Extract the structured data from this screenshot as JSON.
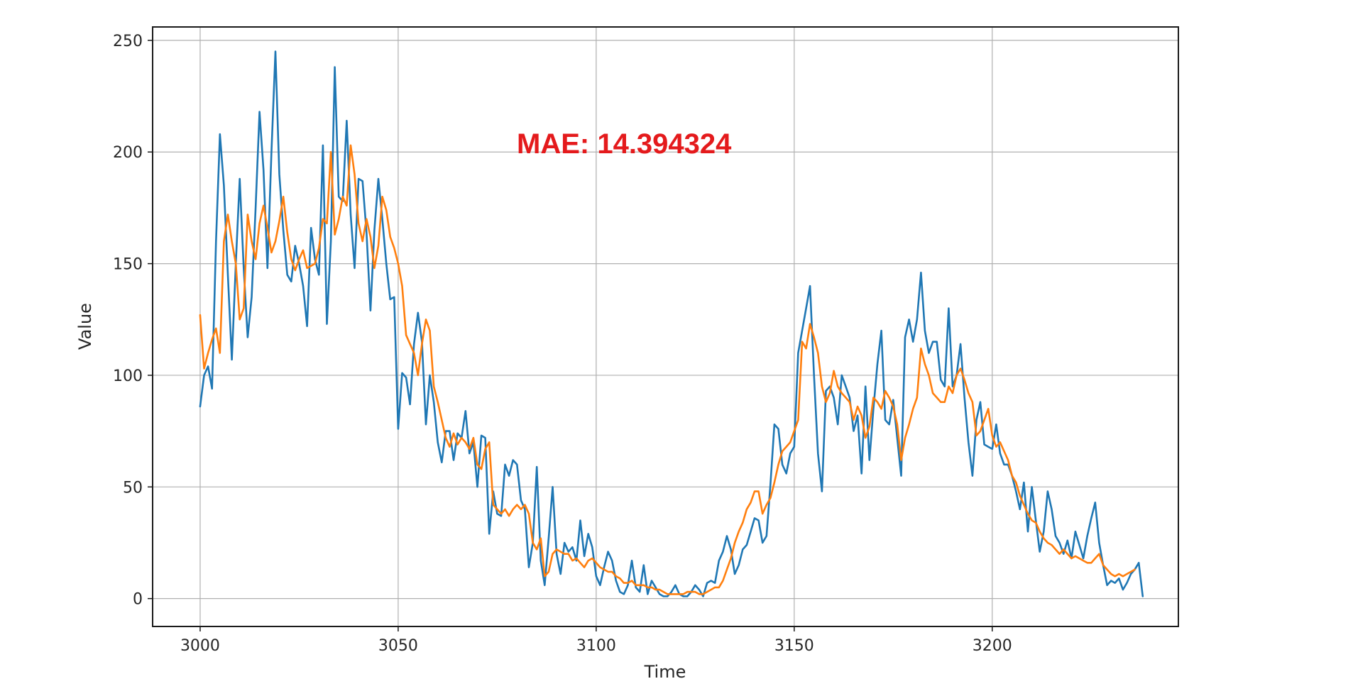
{
  "chart_data": {
    "type": "line",
    "title": "",
    "xlabel": "Time",
    "ylabel": "Value",
    "xlim": [
      2988,
      3247
    ],
    "ylim": [
      -12.5,
      256
    ],
    "x_ticks": [
      3000,
      3050,
      3100,
      3150,
      3200
    ],
    "y_ticks": [
      0,
      50,
      100,
      150,
      200,
      250
    ],
    "grid": true,
    "legend": "none",
    "annotations": [
      {
        "text": "MAE: 14.394324",
        "x": 3080,
        "y": 204,
        "color": "#e41a1c"
      }
    ],
    "series": [
      {
        "color": "#1f77b4",
        "x_start": 3000,
        "x_step": 1,
        "values": [
          86,
          100,
          104,
          94,
          160,
          208,
          185,
          145,
          107,
          150,
          188,
          148,
          117,
          135,
          175,
          218,
          192,
          148,
          200,
          245,
          190,
          165,
          145,
          142,
          158,
          150,
          140,
          122,
          166,
          152,
          145,
          203,
          123,
          160,
          238,
          180,
          178,
          214,
          172,
          148,
          188,
          187,
          164,
          129,
          165,
          188,
          170,
          150,
          134,
          135,
          76,
          101,
          99,
          87,
          114,
          128,
          115,
          78,
          100,
          88,
          70,
          61,
          75,
          75,
          62,
          74,
          72,
          84,
          65,
          70,
          50,
          73,
          72,
          29,
          48,
          38,
          37,
          60,
          55,
          62,
          60,
          44,
          40,
          14,
          25,
          59,
          17,
          6,
          27,
          50,
          20,
          11,
          25,
          21,
          23,
          17,
          35,
          19,
          29,
          23,
          10,
          6,
          14,
          21,
          17,
          8,
          3,
          2,
          6,
          17,
          5,
          3,
          15,
          2,
          8,
          5,
          2,
          1,
          1,
          3,
          6,
          2,
          1,
          1,
          3,
          6,
          4,
          1,
          7,
          8,
          7,
          17,
          21,
          28,
          22,
          11,
          15,
          22,
          24,
          30,
          36,
          35,
          25,
          28,
          51,
          78,
          76,
          60,
          56,
          65,
          68,
          110,
          120,
          130,
          140,
          100,
          65,
          48,
          93,
          95,
          90,
          78,
          100,
          95,
          90,
          75,
          82,
          56,
          95,
          62,
          85,
          105,
          120,
          80,
          78,
          89,
          72,
          55,
          117,
          125,
          115,
          125,
          146,
          120,
          110,
          115,
          115,
          98,
          95,
          130,
          95,
          100,
          114,
          90,
          70,
          55,
          80,
          88,
          69,
          68,
          67,
          78,
          65,
          60,
          60,
          55,
          48,
          40,
          52,
          30,
          50,
          35,
          21,
          30,
          48,
          40,
          28,
          25,
          20,
          26,
          18,
          30,
          24,
          18,
          28,
          36,
          43,
          25,
          15,
          6,
          8,
          7,
          9,
          4,
          7,
          11,
          13,
          16,
          1
        ]
      },
      {
        "color": "#ff7f0e",
        "x_start": 3000,
        "x_step": 1,
        "values": [
          127,
          103,
          110,
          116,
          121,
          110,
          160,
          172,
          160,
          150,
          125,
          130,
          172,
          160,
          152,
          168,
          176,
          166,
          155,
          160,
          169,
          180,
          164,
          152,
          147,
          152,
          156,
          148,
          149,
          150,
          157,
          170,
          168,
          200,
          163,
          170,
          180,
          176,
          203,
          190,
          168,
          160,
          170,
          162,
          148,
          158,
          180,
          174,
          162,
          157,
          150,
          140,
          118,
          114,
          110,
          100,
          114,
          125,
          120,
          95,
          88,
          80,
          72,
          68,
          74,
          69,
          72,
          70,
          67,
          72,
          60,
          58,
          67,
          70,
          42,
          40,
          38,
          40,
          37,
          40,
          42,
          40,
          42,
          38,
          25,
          22,
          27,
          10,
          12,
          20,
          22,
          21,
          20,
          20,
          17,
          18,
          16,
          14,
          17,
          18,
          16,
          14,
          13,
          12,
          12,
          10,
          9,
          7,
          7,
          8,
          6,
          6,
          6,
          5,
          5,
          4,
          4,
          3,
          2,
          2,
          2,
          2,
          2,
          3,
          3,
          3,
          2,
          2,
          3,
          4,
          5,
          5,
          8,
          13,
          18,
          25,
          30,
          34,
          40,
          43,
          48,
          48,
          38,
          42,
          45,
          52,
          60,
          66,
          68,
          70,
          75,
          80,
          115,
          112,
          123,
          117,
          110,
          95,
          88,
          92,
          102,
          95,
          92,
          90,
          88,
          80,
          86,
          82,
          72,
          77,
          90,
          88,
          85,
          93,
          90,
          86,
          78,
          62,
          72,
          78,
          85,
          90,
          112,
          105,
          100,
          92,
          90,
          88,
          88,
          95,
          92,
          100,
          103,
          98,
          92,
          88,
          73,
          75,
          80,
          85,
          73,
          68,
          70,
          66,
          62,
          55,
          52,
          46,
          42,
          38,
          35,
          34,
          30,
          27,
          25,
          24,
          22,
          20,
          22,
          20,
          18,
          19,
          18,
          17,
          16,
          16,
          18,
          20,
          15,
          13,
          11,
          10,
          11,
          10,
          11,
          12,
          13
        ]
      }
    ]
  }
}
